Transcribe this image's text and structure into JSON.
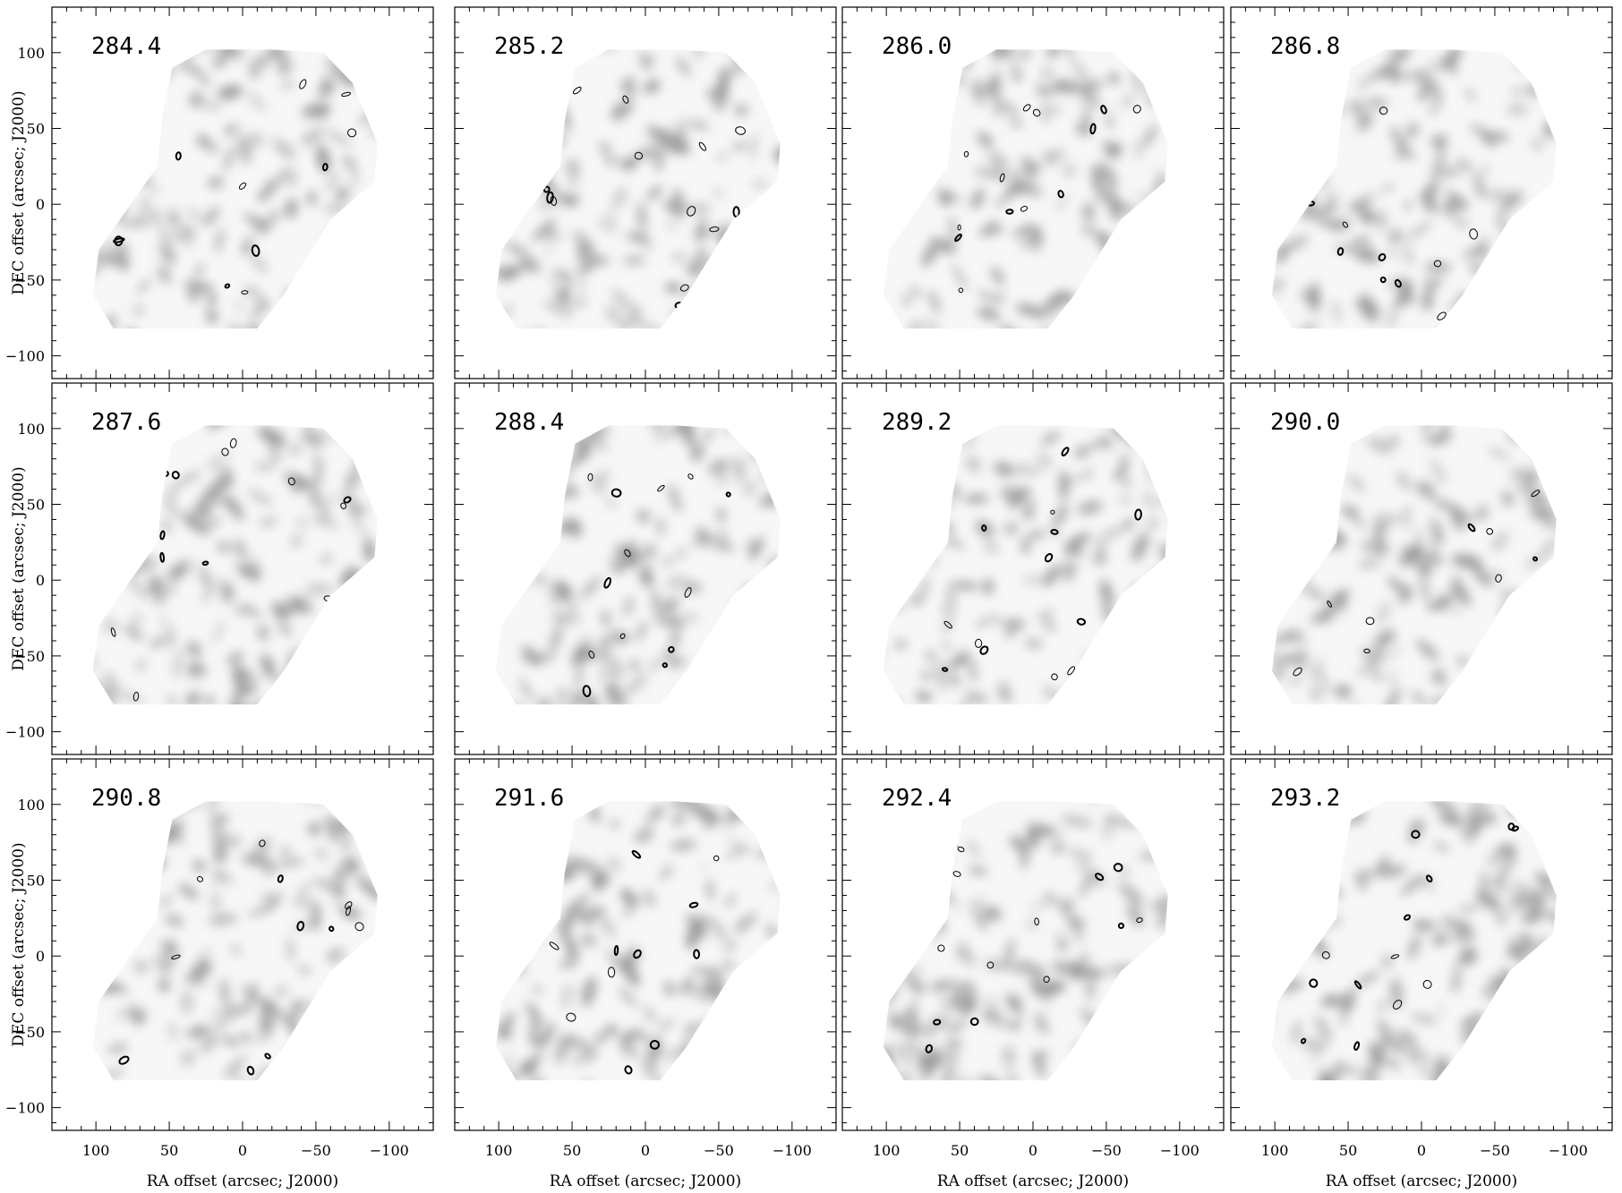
{
  "chart_data": [
    {
      "type": "heatmap",
      "title": "284.4",
      "xlabel": "RA offset (arcsec; J2000)",
      "ylabel": "DEC offset (arcsec; J2000)",
      "xlim": [
        130,
        -130
      ],
      "ylim": [
        -115,
        130
      ],
      "xticks": [
        100,
        50,
        0,
        -50,
        -100
      ],
      "yticks": [
        -100,
        -50,
        0,
        50,
        100
      ],
      "grid": false
    },
    {
      "type": "heatmap",
      "title": "285.2",
      "xlabel": "RA offset (arcsec; J2000)",
      "ylabel": "DEC offset (arcsec; J2000)",
      "xlim": [
        130,
        -130
      ],
      "ylim": [
        -115,
        130
      ],
      "xticks": [
        100,
        50,
        0,
        -50,
        -100
      ],
      "yticks": [
        -100,
        -50,
        0,
        50,
        100
      ],
      "grid": false
    },
    {
      "type": "heatmap",
      "title": "286.0",
      "xlabel": "RA offset (arcsec; J2000)",
      "ylabel": "DEC offset (arcsec; J2000)",
      "xlim": [
        130,
        -130
      ],
      "ylim": [
        -115,
        130
      ],
      "xticks": [
        100,
        50,
        0,
        -50,
        -100
      ],
      "yticks": [
        -100,
        -50,
        0,
        50,
        100
      ],
      "grid": false
    },
    {
      "type": "heatmap",
      "title": "286.8",
      "xlabel": "RA offset (arcsec; J2000)",
      "ylabel": "DEC offset (arcsec; J2000)",
      "xlim": [
        130,
        -130
      ],
      "ylim": [
        -115,
        130
      ],
      "xticks": [
        100,
        50,
        0,
        -50,
        -100
      ],
      "yticks": [
        -100,
        -50,
        0,
        50,
        100
      ],
      "grid": false
    },
    {
      "type": "heatmap",
      "title": "287.6",
      "xlabel": "RA offset (arcsec; J2000)",
      "ylabel": "DEC offset (arcsec; J2000)",
      "xlim": [
        130,
        -130
      ],
      "ylim": [
        -115,
        130
      ],
      "xticks": [
        100,
        50,
        0,
        -50,
        -100
      ],
      "yticks": [
        -100,
        -50,
        0,
        50,
        100
      ],
      "grid": false
    },
    {
      "type": "heatmap",
      "title": "288.4",
      "xlabel": "RA offset (arcsec; J2000)",
      "ylabel": "DEC offset (arcsec; J2000)",
      "xlim": [
        130,
        -130
      ],
      "ylim": [
        -115,
        130
      ],
      "xticks": [
        100,
        50,
        0,
        -50,
        -100
      ],
      "yticks": [
        -100,
        -50,
        0,
        50,
        100
      ],
      "grid": false
    },
    {
      "type": "heatmap",
      "title": "289.2",
      "xlabel": "RA offset (arcsec; J2000)",
      "ylabel": "DEC offset (arcsec; J2000)",
      "xlim": [
        130,
        -130
      ],
      "ylim": [
        -115,
        130
      ],
      "xticks": [
        100,
        50,
        0,
        -50,
        -100
      ],
      "yticks": [
        -100,
        -50,
        0,
        50,
        100
      ],
      "grid": false
    },
    {
      "type": "heatmap",
      "title": "290.0",
      "xlabel": "RA offset (arcsec; J2000)",
      "ylabel": "DEC offset (arcsec; J2000)",
      "xlim": [
        130,
        -130
      ],
      "ylim": [
        -115,
        130
      ],
      "xticks": [
        100,
        50,
        0,
        -50,
        -100
      ],
      "yticks": [
        -100,
        -50,
        0,
        50,
        100
      ],
      "grid": false
    },
    {
      "type": "heatmap",
      "title": "290.8",
      "xlabel": "RA offset (arcsec; J2000)",
      "ylabel": "DEC offset (arcsec; J2000)",
      "xlim": [
        130,
        -130
      ],
      "ylim": [
        -115,
        130
      ],
      "xticks": [
        100,
        50,
        0,
        -50,
        -100
      ],
      "yticks": [
        -100,
        -50,
        0,
        50,
        100
      ],
      "grid": false
    },
    {
      "type": "heatmap",
      "title": "291.6",
      "xlabel": "RA offset (arcsec; J2000)",
      "ylabel": "DEC offset (arcsec; J2000)",
      "xlim": [
        130,
        -130
      ],
      "ylim": [
        -115,
        130
      ],
      "xticks": [
        100,
        50,
        0,
        -50,
        -100
      ],
      "yticks": [
        -100,
        -50,
        0,
        50,
        100
      ],
      "grid": false
    },
    {
      "type": "heatmap",
      "title": "292.4",
      "xlabel": "RA offset (arcsec; J2000)",
      "ylabel": "DEC offset (arcsec; J2000)",
      "xlim": [
        130,
        -130
      ],
      "ylim": [
        -115,
        130
      ],
      "xticks": [
        100,
        50,
        0,
        -50,
        -100
      ],
      "yticks": [
        -100,
        -50,
        0,
        50,
        100
      ],
      "grid": false
    },
    {
      "type": "heatmap",
      "title": "293.2",
      "xlabel": "RA offset (arcsec; J2000)",
      "ylabel": "DEC offset (arcsec; J2000)",
      "xlim": [
        130,
        -130
      ],
      "ylim": [
        -115,
        130
      ],
      "xticks": [
        100,
        50,
        0,
        -50,
        -100
      ],
      "yticks": [
        -100,
        -50,
        0,
        50,
        100
      ],
      "grid": false
    }
  ],
  "colors": {
    "frame": "#000000",
    "emission": "#8a8a8a",
    "coverage": "#f7f7f7",
    "contour": "#000000"
  }
}
